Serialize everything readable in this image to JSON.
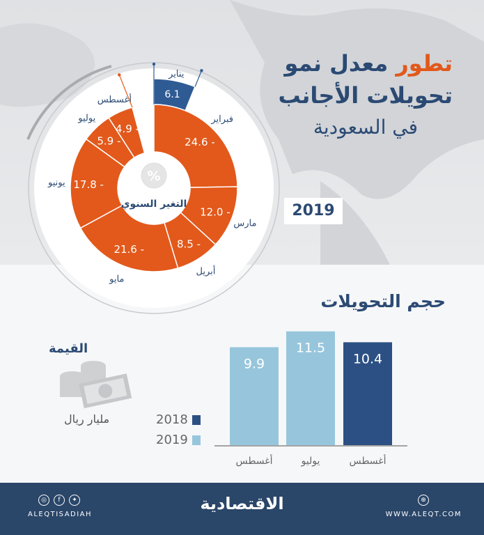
{
  "title": {
    "line1_highlight": "تطور",
    "line1_rest": "معدل نمو",
    "line2": "تحويلات الأجانب",
    "line3": "في السعودية"
  },
  "year_badge": "2019",
  "donut_center_label": "التغير السنوي",
  "donut_center_icon": "percent-icon",
  "section_title": "حجم التحويلات",
  "value_label": "القيمة",
  "unit_label": "مليار ريال",
  "footer": {
    "brand": "الاقتصادية",
    "handle": "ALEQTISADIAH",
    "site": "WWW.ALEQT.COM"
  },
  "colors": {
    "negative": "#e2591b",
    "positive": "#2f5b94",
    "bar_2018": "#2c5083",
    "bar_2019": "#97c6dc",
    "navy": "#2a4669"
  },
  "chart_data": [
    {
      "type": "pie",
      "subtype": "donut",
      "title": "التغير السنوي",
      "unit": "%",
      "categories": [
        "يناير",
        "فبراير",
        "مارس",
        "أبريل",
        "مايو",
        "يونيو",
        "يوليو",
        "أغسطس"
      ],
      "values": [
        6.1,
        -24.6,
        -12.0,
        -8.5,
        -21.6,
        -17.8,
        -5.9,
        -4.9
      ],
      "labels": [
        "6.1",
        "24.6 -",
        "12.0 -",
        "8.5 -",
        "21.6 -",
        "17.8 -",
        "5.9 -",
        "4.9 -"
      ]
    },
    {
      "type": "bar",
      "title": "حجم التحويلات",
      "ylabel": "مليار ريال",
      "categories": [
        "أغسطس",
        "يوليو",
        "أغسطس"
      ],
      "values": [
        10.4,
        11.5,
        9.9
      ],
      "years": [
        "2018",
        "2019",
        "2019"
      ],
      "labels": [
        "10.4",
        "11.5",
        "9.9"
      ],
      "legend": [
        {
          "name": "2018",
          "color": "#2c5083"
        },
        {
          "name": "2019",
          "color": "#97c6dc"
        }
      ],
      "legend_position": "left",
      "grid": false
    }
  ]
}
